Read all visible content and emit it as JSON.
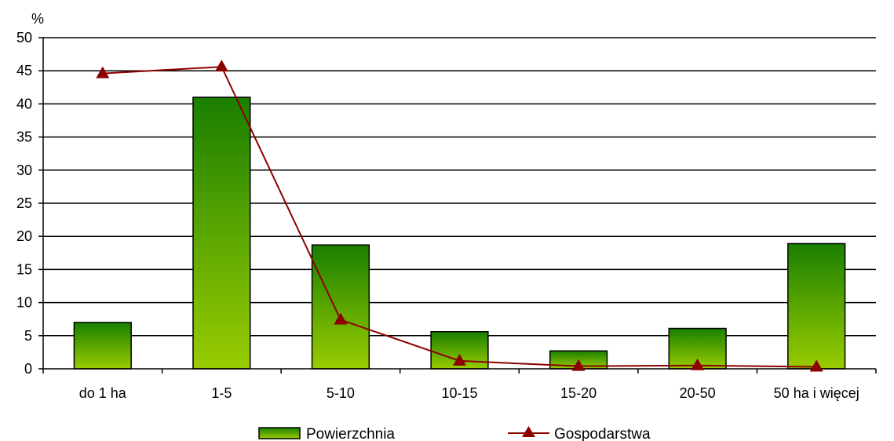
{
  "chart_data": {
    "type": "bar",
    "ylabel": "%",
    "ylim": [
      0,
      50
    ],
    "yticks": [
      0,
      5,
      10,
      15,
      20,
      25,
      30,
      35,
      40,
      45,
      50
    ],
    "categories": [
      "do 1 ha",
      "1-5",
      "5-10",
      "10-15",
      "15-20",
      "20-50",
      "50 ha i więcej"
    ],
    "series": [
      {
        "name": "Powierzchnia",
        "kind": "bar",
        "values": [
          7.0,
          41.0,
          18.7,
          5.6,
          2.7,
          6.1,
          18.9
        ],
        "colors": [
          "#1a7f00",
          "#99cc00"
        ]
      },
      {
        "name": "Gospodarstwa",
        "kind": "line",
        "marker": "triangle",
        "values": [
          44.6,
          45.6,
          7.4,
          1.2,
          0.4,
          0.5,
          0.3
        ],
        "color": "#8b0000"
      }
    ],
    "grid": true,
    "legend": "bottom"
  }
}
